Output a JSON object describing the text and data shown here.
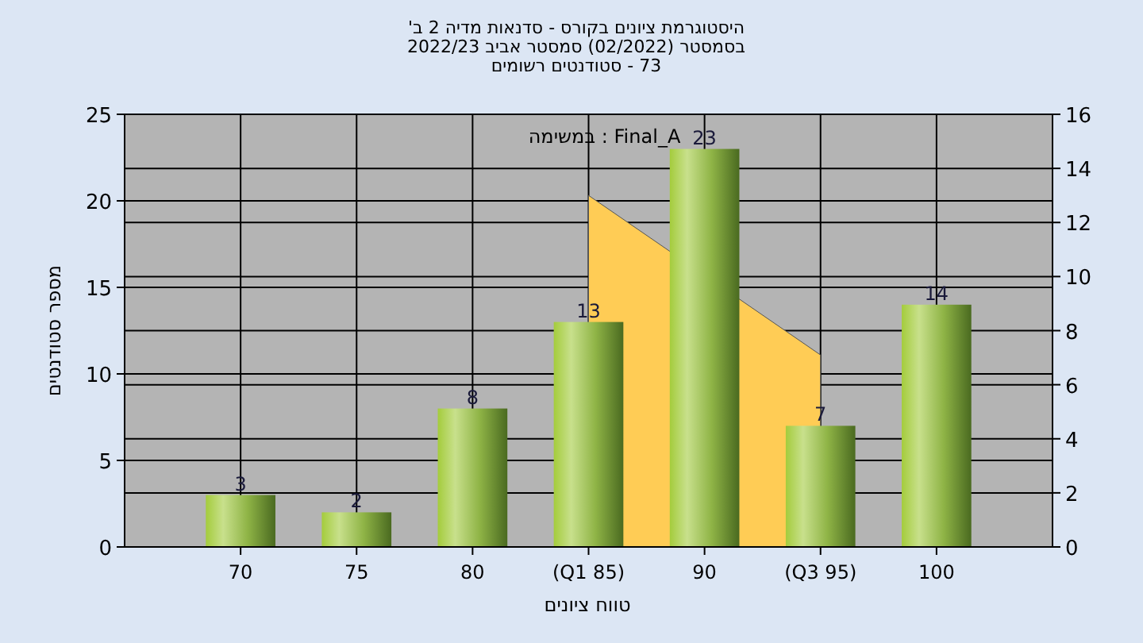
{
  "chart_data": {
    "type": "bar",
    "title": "היסטוגרמת ציונים בקורס - סדנאות מדיה 2 ב'",
    "subtitle": "בסמסטר (02/2022) סמסטר אביב 2022/23\n73 - סטודנטים רשומים",
    "xlabel": "טווח ציונים",
    "ylabel": "מספר סטודנטים",
    "annotations": [
      "במשימה : Final_A"
    ],
    "categories": [
      "70",
      "75",
      "80",
      "(Q1 85)",
      "90",
      "(Q3 95)",
      "100"
    ],
    "series": [
      {
        "type": "area",
        "axis": "y2",
        "color": "#ffcc55",
        "values": [
          null,
          null,
          null,
          13,
          null,
          7.1,
          null
        ]
      },
      {
        "color": "#8fb446",
        "values": [
          3,
          2,
          8,
          13,
          23,
          7,
          14
        ],
        "value_labels": [
          "3",
          "2",
          "8",
          "13",
          "23",
          "7",
          "14"
        ]
      }
    ],
    "ylim": [
      0,
      25
    ],
    "yticks": [
      0,
      5,
      10,
      15,
      20,
      25
    ],
    "y2lim": [
      0,
      16
    ],
    "y2ticks": [
      0,
      2,
      4,
      6,
      8,
      10,
      12,
      14,
      16
    ],
    "grid": true
  }
}
